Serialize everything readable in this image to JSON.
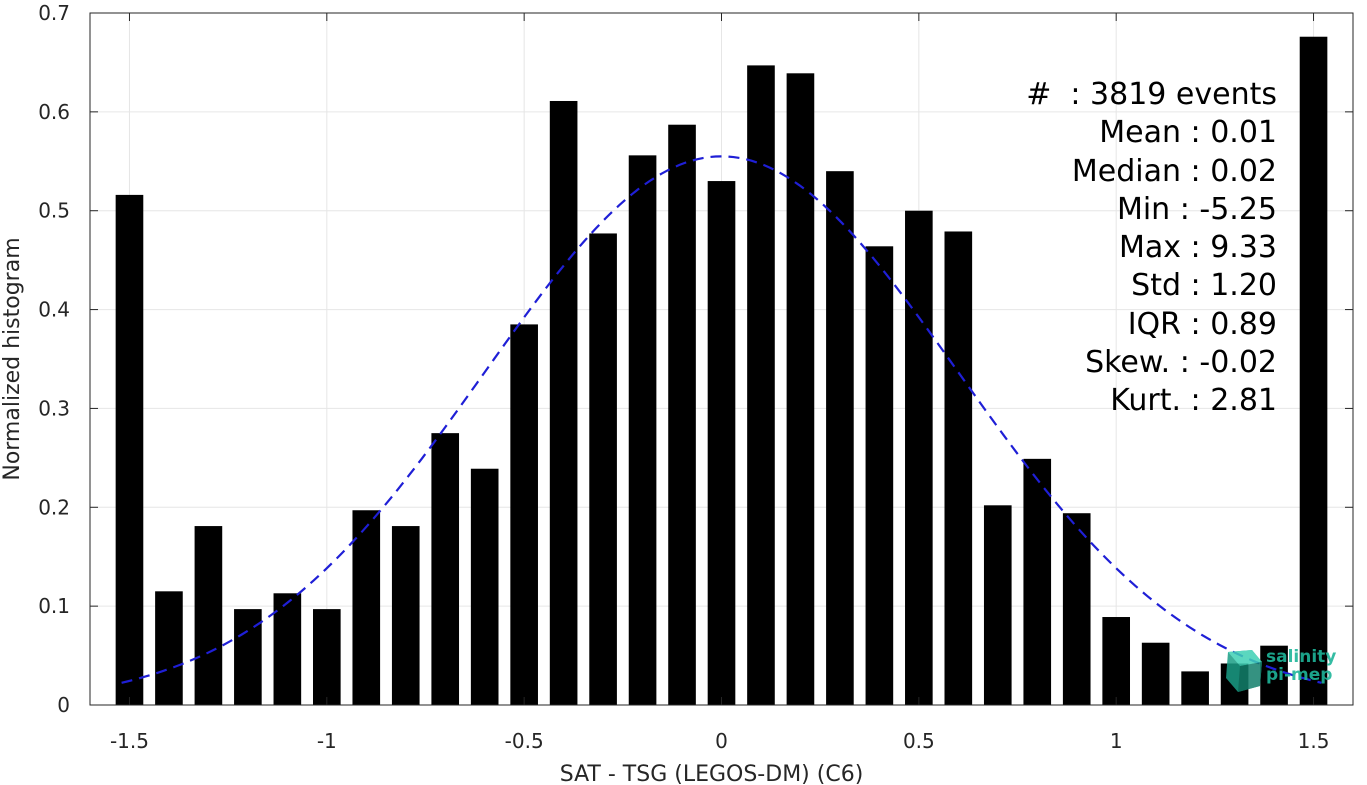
{
  "chart_data": {
    "type": "bar",
    "xlabel": "SAT - TSG (LEGOS-DM) (C6)",
    "ylabel": "Normalized histogram",
    "xlim": [
      -1.6,
      1.6
    ],
    "ylim": [
      0,
      0.7
    ],
    "xticks": [
      -1.5,
      -1,
      -0.5,
      0,
      0.5,
      1,
      1.5
    ],
    "xtick_labels": [
      "-1.5",
      "-1",
      "-0.5",
      "0",
      "0.5",
      "1",
      "1.5"
    ],
    "yticks": [
      0,
      0.1,
      0.2,
      0.3,
      0.4,
      0.5,
      0.6,
      0.7
    ],
    "ytick_labels": [
      "0",
      "0.1",
      "0.2",
      "0.3",
      "0.4",
      "0.5",
      "0.6",
      "0.7"
    ],
    "grid": true,
    "bar_width": 0.07,
    "bar_color": "#000000",
    "x": [
      -1.5,
      -1.4,
      -1.3,
      -1.2,
      -1.1,
      -1.0,
      -0.9,
      -0.8,
      -0.7,
      -0.6,
      -0.5,
      -0.4,
      -0.3,
      -0.2,
      -0.1,
      0.0,
      0.1,
      0.2,
      0.3,
      0.4,
      0.5,
      0.6,
      0.7,
      0.8,
      0.9,
      1.0,
      1.1,
      1.2,
      1.3,
      1.4,
      1.5
    ],
    "values": [
      0.516,
      0.115,
      0.181,
      0.097,
      0.113,
      0.097,
      0.197,
      0.181,
      0.275,
      0.239,
      0.385,
      0.611,
      0.477,
      0.556,
      0.587,
      0.53,
      0.647,
      0.639,
      0.54,
      0.464,
      0.5,
      0.479,
      0.202,
      0.249,
      0.194,
      0.089,
      0.063,
      0.034,
      0.042,
      0.06,
      0.676
    ],
    "fit_curve": {
      "type": "normal",
      "mean": 0.0,
      "peak": 0.555,
      "sigma": 0.6,
      "x_range": [
        -1.52,
        1.52
      ],
      "color": "#1f1fd6",
      "style": "dashed"
    }
  },
  "stats": [
    "#  : 3819 events",
    "Mean : 0.01",
    "Median : 0.02",
    "Min : -5.25",
    "Max : 9.33",
    "Std : 1.20",
    "IQR : 0.89",
    "Skew. : -0.02",
    "Kurt. : 2.81"
  ],
  "logo": {
    "line1": "salinity",
    "line2": "pi-mep",
    "color": "#1fb59a"
  }
}
